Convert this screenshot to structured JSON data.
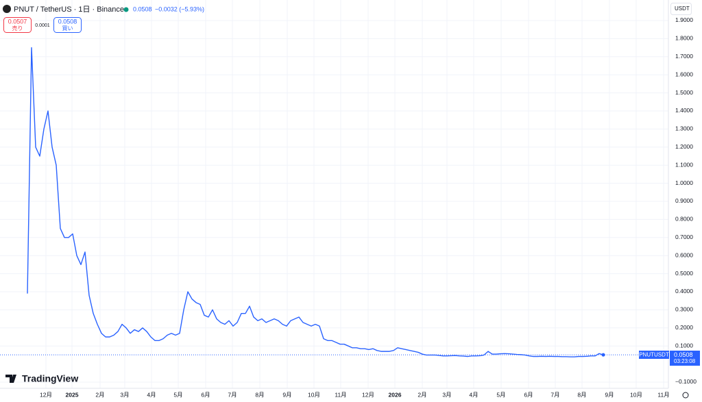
{
  "header": {
    "symbol": "PNUT / TetherUS · 1日 · Binance",
    "last": "0.0508",
    "change": "−0.0032 (−5.93%)",
    "sell_price": "0.0507",
    "sell_label": "売り",
    "spread": "0.0001",
    "buy_price": "0.0508",
    "buy_label": "買い",
    "currency": "USDT",
    "logo": "TradingView"
  },
  "price_tag": {
    "symbol": "PNUTUSDT",
    "price": "0.0508",
    "countdown": "03:23:08"
  },
  "chart_data": {
    "type": "line",
    "grid": true,
    "series": [
      {
        "name": "PNUTUSDT",
        "color": "#2962ff",
        "values": [
          0.39,
          1.75,
          1.2,
          1.15,
          1.3,
          1.4,
          1.2,
          1.1,
          0.75,
          0.7,
          0.7,
          0.72,
          0.6,
          0.55,
          0.62,
          0.38,
          0.28,
          0.22,
          0.17,
          0.15,
          0.15,
          0.16,
          0.18,
          0.22,
          0.2,
          0.17,
          0.19,
          0.18,
          0.2,
          0.18,
          0.15,
          0.13,
          0.13,
          0.14,
          0.16,
          0.17,
          0.16,
          0.17,
          0.3,
          0.4,
          0.36,
          0.34,
          0.33,
          0.27,
          0.26,
          0.3,
          0.25,
          0.23,
          0.22,
          0.24,
          0.21,
          0.23,
          0.28,
          0.28,
          0.32,
          0.26,
          0.24,
          0.25,
          0.23,
          0.24,
          0.25,
          0.24,
          0.22,
          0.21,
          0.24,
          0.25,
          0.26,
          0.23,
          0.22,
          0.21,
          0.22,
          0.21,
          0.14,
          0.13,
          0.13,
          0.12,
          0.11,
          0.11,
          0.1,
          0.09,
          0.09,
          0.085,
          0.085,
          0.08,
          0.085,
          0.075,
          0.07,
          0.07,
          0.07,
          0.075,
          0.09,
          0.085,
          0.08,
          0.075,
          0.07,
          0.065,
          0.055,
          0.05,
          0.05,
          0.05,
          0.048,
          0.045,
          0.045,
          0.046,
          0.047,
          0.045,
          0.044,
          0.042,
          0.045,
          0.045,
          0.046,
          0.05,
          0.07,
          0.055,
          0.055,
          0.057,
          0.058,
          0.057,
          0.055,
          0.053,
          0.052,
          0.05,
          0.045,
          0.042,
          0.042,
          0.043,
          0.042,
          0.043,
          0.042,
          0.042,
          0.041,
          0.041,
          0.04,
          0.04,
          0.042,
          0.042,
          0.043,
          0.045,
          0.045,
          0.058,
          0.0508
        ]
      }
    ],
    "last_value": 0.0508,
    "xlim": [
      -6.667,
      155.83
    ],
    "xticks": [
      {
        "value": 4.5,
        "label": "12月"
      },
      {
        "value": 10.83,
        "label": "2025"
      },
      {
        "value": 17.67,
        "label": "2月"
      },
      {
        "value": 23.67,
        "label": "3月"
      },
      {
        "value": 30.17,
        "label": "4月"
      },
      {
        "value": 36.67,
        "label": "5月"
      },
      {
        "value": 43.33,
        "label": "6月"
      },
      {
        "value": 49.83,
        "label": "7月"
      },
      {
        "value": 56.5,
        "label": "8月"
      },
      {
        "value": 63.17,
        "label": "9月"
      },
      {
        "value": 69.67,
        "label": "10月"
      },
      {
        "value": 76.17,
        "label": "11月"
      },
      {
        "value": 82.83,
        "label": "12月"
      },
      {
        "value": 89.33,
        "label": "2026"
      },
      {
        "value": 96,
        "label": "2月"
      },
      {
        "value": 102,
        "label": "3月"
      },
      {
        "value": 108.5,
        "label": "4月"
      },
      {
        "value": 115.17,
        "label": "5月"
      },
      {
        "value": 121.83,
        "label": "6月"
      },
      {
        "value": 128.33,
        "label": "7月"
      },
      {
        "value": 134.83,
        "label": "8月"
      },
      {
        "value": 141.5,
        "label": "9月"
      },
      {
        "value": 148,
        "label": "10月"
      },
      {
        "value": 154.67,
        "label": "11月"
      }
    ],
    "ylim": [
      -0.1341,
      2.0136
    ],
    "yticks": [
      {
        "value": 1.9,
        "label": "1.9000"
      },
      {
        "value": 1.8,
        "label": "1.8000"
      },
      {
        "value": 1.7,
        "label": "1.7000"
      },
      {
        "value": 1.6,
        "label": "1.6000"
      },
      {
        "value": 1.5,
        "label": "1.5000"
      },
      {
        "value": 1.4,
        "label": "1.4000"
      },
      {
        "value": 1.3,
        "label": "1.3000"
      },
      {
        "value": 1.2,
        "label": "1.2000"
      },
      {
        "value": 1.1,
        "label": "1.1000"
      },
      {
        "value": 1,
        "label": "1.0000"
      },
      {
        "value": 0.9,
        "label": "0.9000"
      },
      {
        "value": 0.8,
        "label": "0.8000"
      },
      {
        "value": 0.7,
        "label": "0.7000"
      },
      {
        "value": 0.6,
        "label": "0.6000"
      },
      {
        "value": 0.5,
        "label": "0.5000"
      },
      {
        "value": 0.4,
        "label": "0.4000"
      },
      {
        "value": 0.3,
        "label": "0.3000"
      },
      {
        "value": 0.2,
        "label": "0.2000"
      },
      {
        "value": 0.1,
        "label": "0.1000"
      },
      {
        "value": -0.1,
        "label": "−0.1000"
      }
    ]
  }
}
